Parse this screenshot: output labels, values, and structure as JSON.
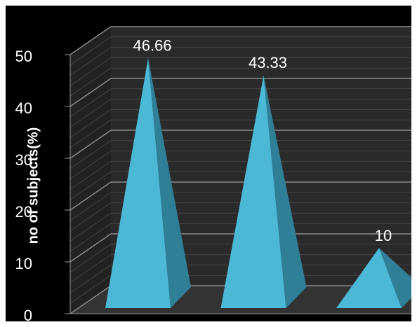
{
  "chart_data": {
    "type": "pyramid",
    "y_label": "no of subjects(%)",
    "categories": [
      null,
      null,
      null
    ],
    "values": [
      46.66,
      43.33,
      10
    ],
    "color": "#4bb8d6",
    "ylim": [
      0,
      50
    ],
    "yticks": [
      0,
      10,
      20,
      30,
      40,
      50
    ],
    "grid": true
  }
}
